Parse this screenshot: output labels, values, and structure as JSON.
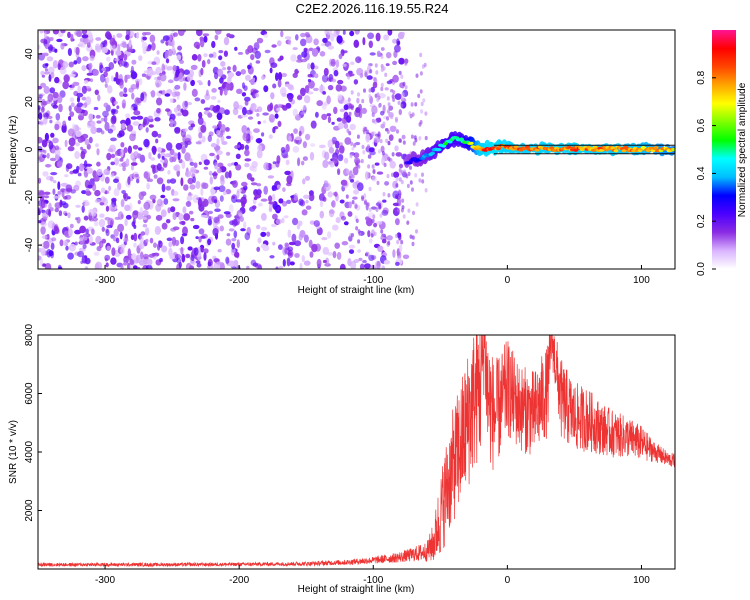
{
  "title": "C2E2.2026.116.19.55.R24",
  "chart_data": [
    {
      "type": "heatmap",
      "xlabel": "Height of straight line (km)",
      "ylabel": "Frequency (Hz)",
      "xlim": [
        -350,
        125
      ],
      "ylim": [
        -50,
        50
      ],
      "x_ticks": [
        -300,
        -200,
        -100,
        0,
        100
      ],
      "y_ticks": [
        -40,
        -20,
        0,
        20,
        40
      ],
      "colorbar": {
        "label": "Normalized spectral amplitude",
        "range": [
          0,
          1
        ],
        "ticks": [
          0.0,
          0.2,
          0.4,
          0.6,
          0.8
        ],
        "colors": [
          "#ffffff",
          "#d9b3ff",
          "#8a2be2",
          "#4b00ff",
          "#0000ff",
          "#00bfff",
          "#00ffff",
          "#00ff00",
          "#7fff00",
          "#ffff00",
          "#ffa500",
          "#ff4500",
          "#ff0000",
          "#ff1493"
        ]
      },
      "noise_region": {
        "x": [
          -350,
          -75
        ],
        "y": [
          -50,
          50
        ],
        "amplitude": 0.15
      },
      "signal_track": {
        "x": [
          -75,
          -65,
          -55,
          -45,
          -38,
          -30,
          -20,
          -10,
          0,
          10,
          30,
          60,
          100,
          125
        ],
        "y": [
          -5,
          -4,
          -1,
          3,
          5,
          3,
          0,
          1,
          1,
          0.5,
          0.3,
          0.2,
          0.2,
          0.2
        ],
        "amplitude": [
          0.3,
          0.35,
          0.45,
          0.55,
          0.5,
          0.6,
          0.9,
          0.95,
          0.9,
          0.9,
          0.9,
          0.9,
          0.85,
          0.8
        ]
      }
    },
    {
      "type": "line",
      "xlabel": "Height of straight line (km)",
      "ylabel": "SNR (10 * v/v)",
      "xlim": [
        -350,
        125
      ],
      "ylim": [
        0,
        8000
      ],
      "x_ticks": [
        -300,
        -200,
        -100,
        0,
        100
      ],
      "y_ticks": [
        2000,
        4000,
        6000,
        8000
      ],
      "color": "#ee3333",
      "series": [
        {
          "x": [
            -350,
            -300,
            -250,
            -200,
            -150,
            -120,
            -100,
            -80,
            -70,
            -60,
            -55,
            -50,
            -45,
            -40,
            -35,
            -30,
            -25,
            -20,
            -17,
            -15,
            -10,
            -5,
            0,
            5,
            10,
            20,
            30,
            33,
            40,
            50,
            60,
            70,
            80,
            90,
            100,
            110,
            120,
            125
          ],
          "y": [
            150,
            150,
            150,
            160,
            180,
            230,
            300,
            400,
            500,
            600,
            900,
            1800,
            2800,
            3600,
            4200,
            5000,
            5800,
            6300,
            7900,
            6000,
            5200,
            5600,
            6200,
            5800,
            5500,
            5300,
            6100,
            7900,
            5800,
            5200,
            5100,
            4800,
            4600,
            4500,
            4300,
            4000,
            3750,
            3700
          ],
          "spread": [
            60,
            60,
            60,
            60,
            70,
            90,
            120,
            180,
            250,
            350,
            700,
            1400,
            1800,
            2000,
            2200,
            2400,
            2500,
            2600,
            1500,
            2400,
            1900,
            1800,
            1700,
            1600,
            1500,
            1500,
            1600,
            800,
            1400,
            1200,
            1100,
            900,
            800,
            700,
            600,
            350,
            250,
            250
          ]
        }
      ]
    }
  ]
}
